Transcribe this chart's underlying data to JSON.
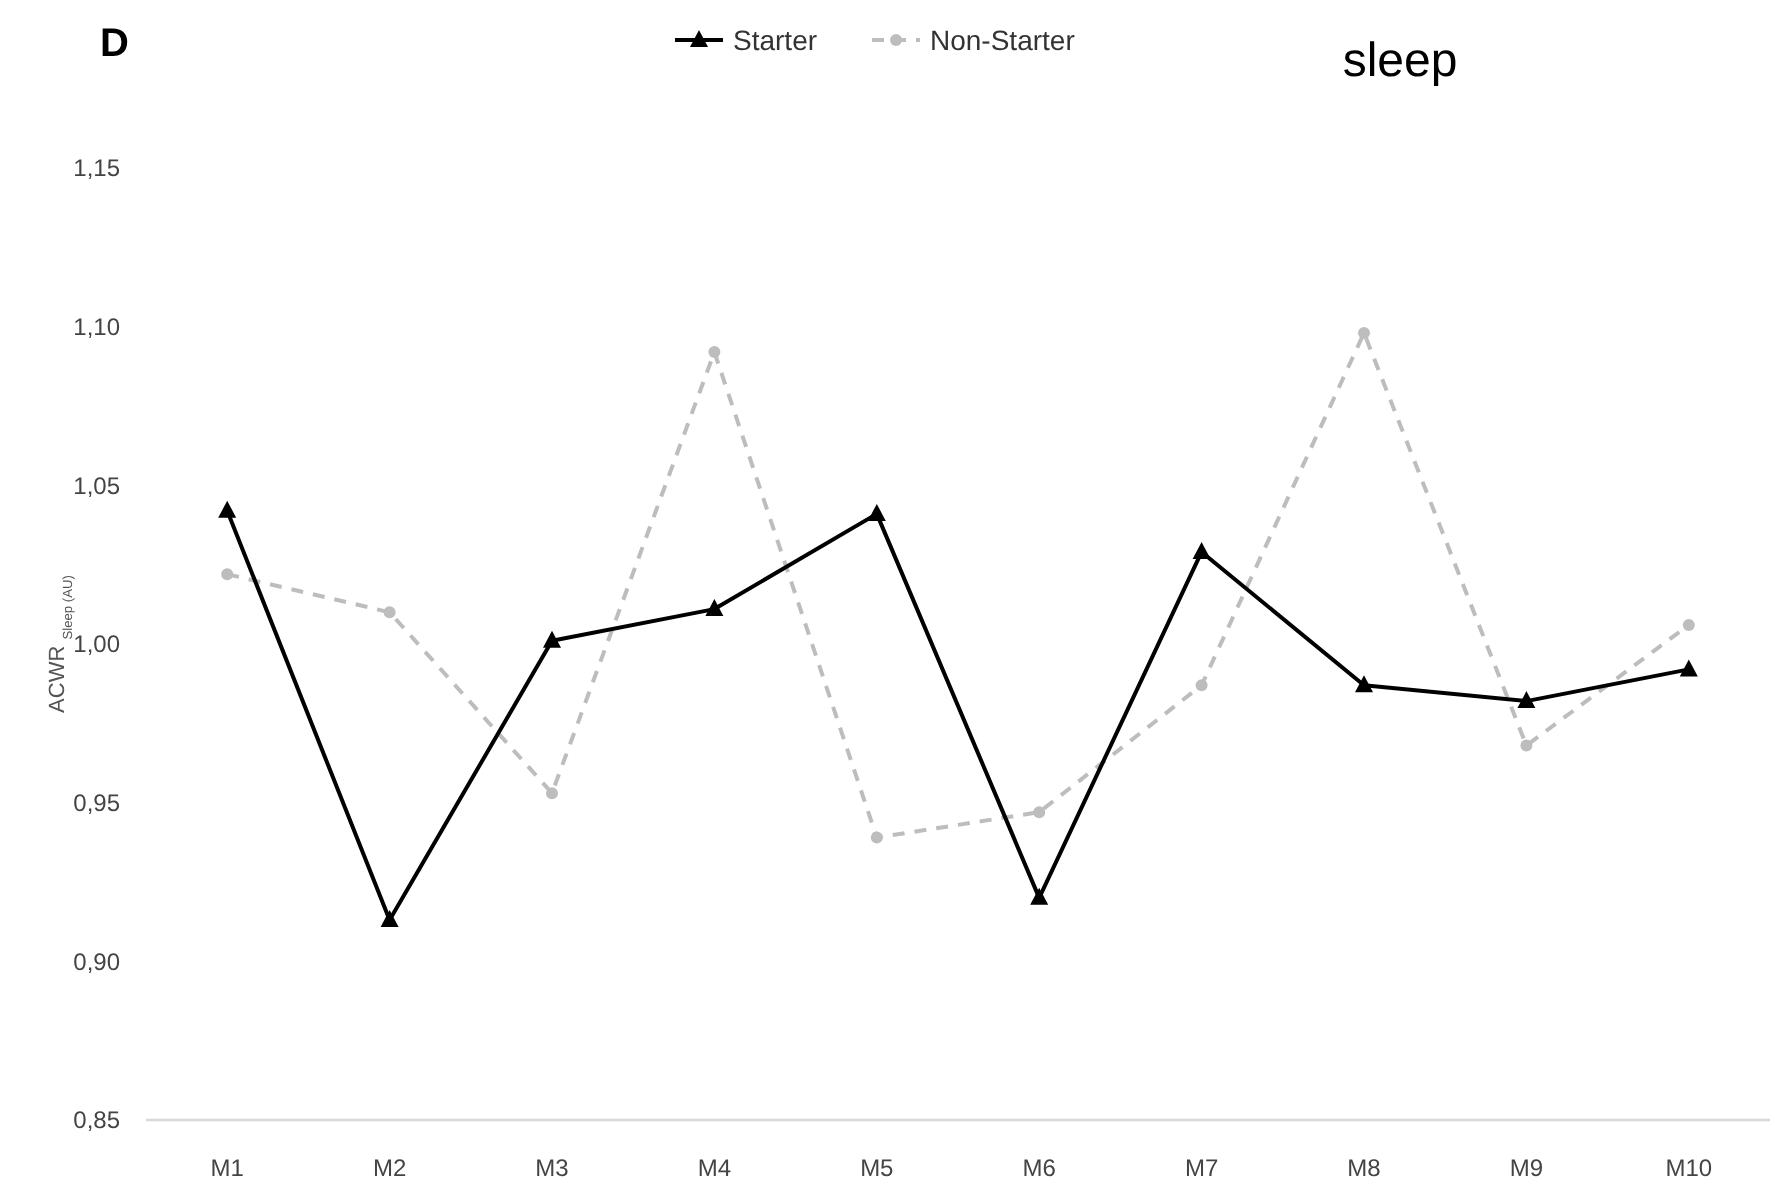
{
  "chart_data": {
    "type": "line",
    "title": "sleep",
    "annotations": [
      "D"
    ],
    "ylabel": "ACWR $_{Sleep (AU)}$",
    "categories": [
      "M1",
      "M2",
      "M3",
      "M4",
      "M5",
      "M6",
      "M7",
      "M8",
      "M9",
      "M10"
    ],
    "series": [
      {
        "name": "Starter",
        "color": "#000000",
        "marker": "triangle",
        "line_style": "solid",
        "values": [
          1.042,
          0.913,
          1.001,
          1.011,
          1.041,
          0.92,
          1.029,
          0.987,
          0.982,
          0.992
        ]
      },
      {
        "name": "Non-Starter",
        "color": "#bdbdbd",
        "marker": "circle",
        "line_style": "dashed",
        "values": [
          1.022,
          1.01,
          0.953,
          1.092,
          0.939,
          0.947,
          0.987,
          1.098,
          0.968,
          1.006
        ]
      }
    ],
    "ylim": [
      0.85,
      1.15
    ],
    "yticks": [
      {
        "value": 0.85,
        "label": "0,85"
      },
      {
        "value": 0.9,
        "label": "0,90"
      },
      {
        "value": 0.95,
        "label": "0,95"
      },
      {
        "value": 1.0,
        "label": "1,00"
      },
      {
        "value": 1.05,
        "label": "1,05"
      },
      {
        "value": 1.1,
        "label": "1,10"
      },
      {
        "value": 1.15,
        "label": "1,15"
      }
    ],
    "grid": false,
    "legend": "top"
  }
}
